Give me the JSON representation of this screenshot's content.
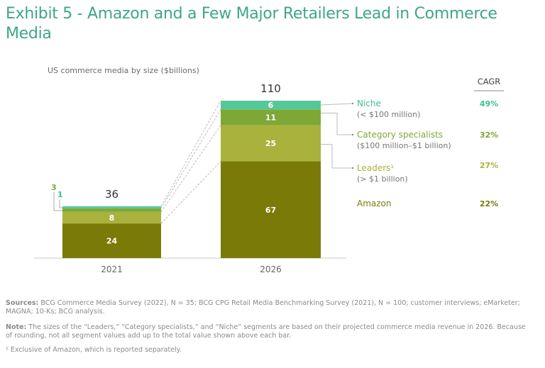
{
  "title": "Exhibit 5 - Amazon and a Few Major Retailers Lead in Commerce Media",
  "chart_data": {
    "type": "bar",
    "stacked": true,
    "subtitle": "US commerce media by size ($billions)",
    "categories": [
      "2021",
      "2026"
    ],
    "totals": [
      36,
      110
    ],
    "series": [
      {
        "name": "Amazon",
        "sub": "",
        "values": [
          24,
          67
        ],
        "color": "#7a7a08",
        "cagr": "22%",
        "label_color": "#7a7a08"
      },
      {
        "name": "Leaders¹",
        "sub": "(> $1 billion)",
        "values": [
          8,
          25
        ],
        "color": "#a8b23c",
        "cagr": "27%",
        "label_color": "#a8b23c"
      },
      {
        "name": "Category specialists",
        "sub": "($100 million–$1 billion)",
        "values": [
          3,
          11
        ],
        "color": "#7ea836",
        "cagr": "32%",
        "label_color": "#7ea836"
      },
      {
        "name": "Niche",
        "sub": "(< $100 million)",
        "values": [
          1,
          6
        ],
        "color": "#55c89a",
        "cagr": "49%",
        "label_color": "#3ec092"
      }
    ],
    "cagr_header": "CAGR",
    "ylim": [
      0,
      110
    ]
  },
  "footnotes": {
    "sources_label": "Sources:",
    "sources": " BCG Commerce Media Survey (2022), N = 35; BCG CPG Retail Media Benchmarking Survey (2021), N = 100; customer interviews; eMarketer; MAGNA; 10-Ks; BCG analysis.",
    "note_label": "Note:",
    "note": " The sizes of the “Leaders,” “Category specialists,” and “Niche” segments are based on their projected commerce media revenue in 2026. Because of rounding, not all segment values add up to the total value shown above each bar.",
    "footnote1": "¹ Exclusive of Amazon, which is reported separately."
  }
}
